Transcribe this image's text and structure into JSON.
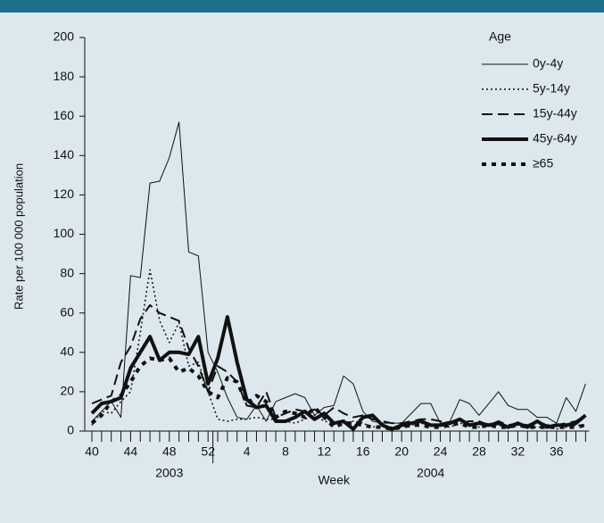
{
  "chart_data": {
    "type": "line",
    "y_label": "Rate per 100 000 population",
    "categories": [
      "40",
      null,
      null,
      null,
      "44",
      null,
      null,
      null,
      "48",
      null,
      null,
      null,
      "52",
      null,
      null,
      null,
      "4",
      null,
      null,
      null,
      "8",
      null,
      null,
      null,
      "12",
      null,
      null,
      null,
      "16",
      null,
      null,
      null,
      "20",
      null,
      null,
      null,
      "24",
      null,
      null,
      null,
      "28",
      null,
      null,
      null,
      "32",
      null,
      null,
      null,
      "36",
      null,
      null,
      null
    ],
    "annotations": [
      {
        "text": "2003",
        "at": 8
      },
      {
        "text": "Week",
        "at": 25
      },
      {
        "text": "2004",
        "at": 35
      }
    ],
    "ylim": [
      0,
      200
    ],
    "yticks": [
      0,
      20,
      40,
      60,
      80,
      100,
      120,
      140,
      160,
      180,
      200
    ],
    "legend_title": "Age",
    "legend": "upper right",
    "series": [
      {
        "name": "0y-4y",
        "color": "#111111",
        "style": "thin",
        "values": [
          5,
          10,
          15,
          7,
          79,
          78,
          126,
          127,
          139,
          157,
          91,
          89,
          40,
          30,
          17,
          7,
          6,
          13,
          5,
          15,
          17,
          19,
          17,
          8,
          12,
          13,
          28,
          24,
          10,
          5,
          4,
          4,
          4,
          9,
          14,
          14,
          4,
          5,
          16,
          14,
          8,
          14,
          20,
          13,
          11,
          11,
          7,
          7,
          4,
          17,
          10,
          24
        ]
      },
      {
        "name": "5y-14y",
        "color": "#111111",
        "style": "dotted",
        "values": [
          3,
          10,
          9,
          15,
          20,
          50,
          82,
          56,
          45,
          55,
          33,
          35,
          20,
          6,
          5,
          6,
          6,
          7,
          6,
          6,
          5,
          4,
          6,
          8,
          5,
          4,
          4,
          5,
          4,
          2,
          3,
          2,
          2,
          3,
          4,
          3,
          3,
          2,
          4,
          3,
          2,
          4,
          3,
          2,
          3,
          2,
          2,
          2,
          1,
          2,
          3,
          3
        ]
      },
      {
        "name": "15y-44y",
        "color": "#111111",
        "style": "dashed",
        "values": [
          14,
          16,
          18,
          35,
          43,
          57,
          64,
          60,
          58,
          56,
          42,
          33,
          20,
          33,
          30,
          25,
          13,
          12,
          20,
          7,
          9,
          11,
          10,
          11,
          8,
          12,
          9,
          7,
          8,
          6,
          5,
          4,
          4,
          5,
          6,
          6,
          5,
          4,
          4,
          5,
          5,
          3,
          5,
          3,
          4,
          3,
          5,
          3,
          3,
          4,
          5,
          8
        ]
      },
      {
        "name": "45y-64y",
        "color": "#111111",
        "style": "thick",
        "values": [
          9,
          14,
          15,
          17,
          32,
          40,
          48,
          36,
          40,
          40,
          39,
          48,
          24,
          37,
          58,
          35,
          16,
          12,
          13,
          5,
          5,
          7,
          10,
          6,
          9,
          4,
          5,
          1,
          7,
          8,
          3,
          1,
          3,
          4,
          5,
          3,
          3,
          4,
          6,
          3,
          4,
          3,
          4,
          2,
          4,
          2,
          5,
          2,
          3,
          3,
          4,
          8
        ]
      },
      {
        "name": "≥65",
        "color": "#111111",
        "style": "thick-dotted",
        "values": [
          4,
          8,
          15,
          18,
          25,
          33,
          37,
          36,
          37,
          30,
          32,
          28,
          20,
          17,
          27,
          25,
          14,
          18,
          15,
          7,
          10,
          9,
          7,
          12,
          7,
          2,
          4,
          4,
          3,
          2,
          2,
          1,
          2,
          3,
          3,
          2,
          2,
          3,
          4,
          2,
          2,
          3,
          2,
          2,
          3,
          2,
          2,
          2,
          2,
          2,
          2,
          3
        ]
      }
    ]
  }
}
